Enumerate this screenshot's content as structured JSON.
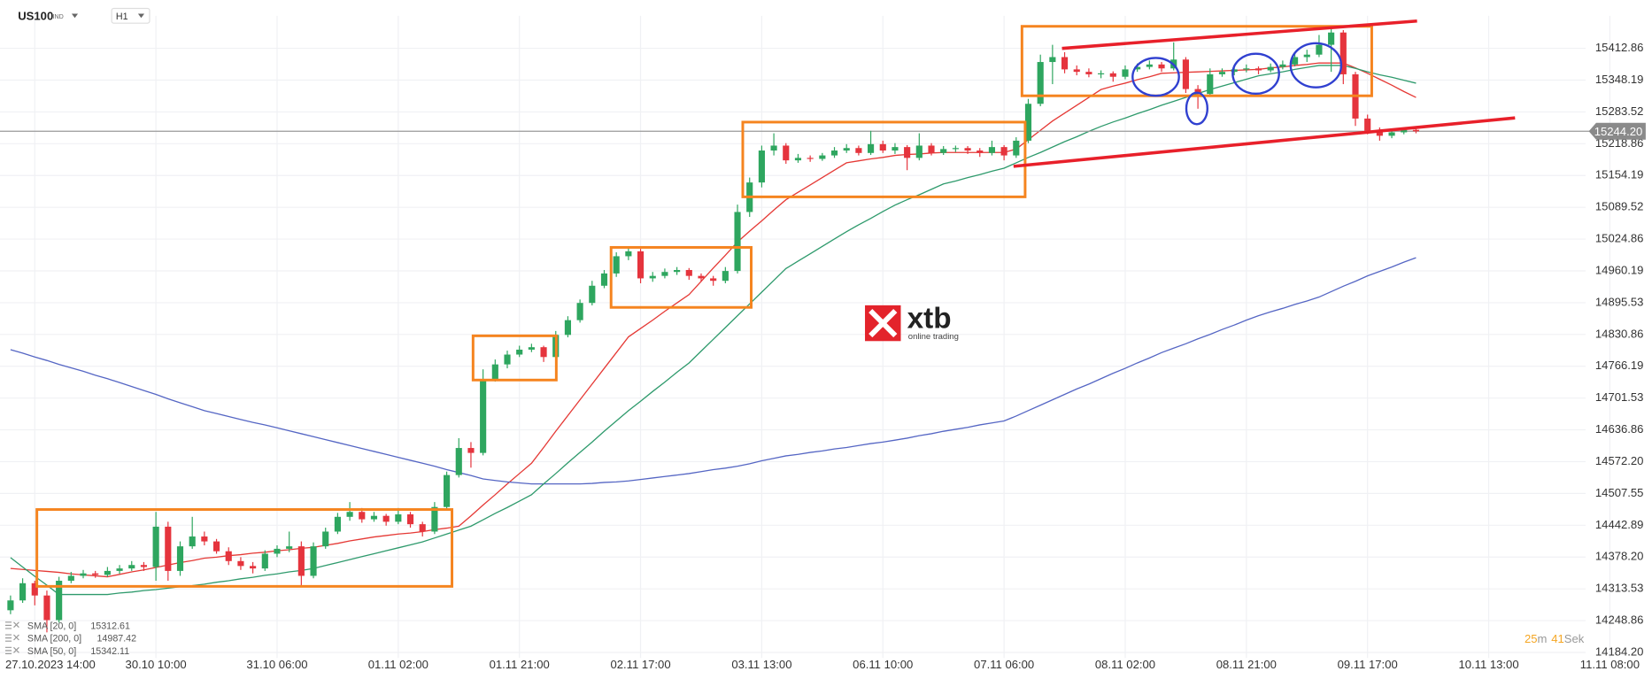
{
  "header": {
    "symbol": "US100",
    "market": "IND",
    "timeframe": "H1"
  },
  "logo": {
    "brand": "xtb",
    "tagline": "online trading"
  },
  "countdown": {
    "minutes": "25",
    "minutes_unit": "m",
    "seconds": "41",
    "seconds_unit": "Sek"
  },
  "chart_data": {
    "type": "candlestick",
    "categories": [
      null,
      null,
      "27.10.2023 14:00",
      null,
      null,
      null,
      null,
      null,
      null,
      null,
      null,
      null,
      "30.10 10:00",
      null,
      null,
      null,
      null,
      null,
      null,
      null,
      null,
      null,
      "31.10 06:00",
      null,
      null,
      null,
      null,
      null,
      null,
      null,
      null,
      null,
      "01.11 02:00",
      null,
      null,
      null,
      null,
      null,
      null,
      null,
      null,
      null,
      "01.11 21:00",
      null,
      null,
      null,
      null,
      null,
      null,
      null,
      null,
      null,
      "02.11 17:00",
      null,
      null,
      null,
      null,
      null,
      null,
      null,
      null,
      null,
      "03.11 13:00",
      null,
      null,
      null,
      null,
      null,
      null,
      null,
      null,
      null,
      "06.11 10:00",
      null,
      null,
      null,
      null,
      null,
      null,
      null,
      null,
      null,
      "07.11 06:00",
      null,
      null,
      null,
      null,
      null,
      null,
      null,
      null,
      null,
      "08.11 02:00",
      null,
      null,
      null,
      null,
      null,
      null,
      null,
      null,
      null,
      "08.11 21:00",
      null,
      null,
      null,
      null,
      null,
      null,
      null,
      null,
      null,
      "09.11 17:00",
      null,
      null,
      null,
      null,
      null,
      null,
      null,
      null,
      null,
      "10.11 13:00",
      null,
      null,
      null,
      null,
      null,
      null,
      null,
      null,
      null,
      "11.11 08:00"
    ],
    "open": [
      14270,
      14290,
      14325,
      14300,
      14250,
      14330,
      14340,
      14345,
      14342,
      14350,
      14355,
      14362,
      14358,
      14440,
      14350,
      14400,
      14420,
      14410,
      14390,
      14370,
      14360,
      14355,
      14385,
      14395,
      14400,
      14340,
      14400,
      14430,
      14460,
      14470,
      14455,
      14462,
      14450,
      14465,
      14445,
      14430,
      14480,
      14545,
      14600,
      14590,
      14740,
      14770,
      14790,
      14800,
      14805,
      14785,
      14830,
      14860,
      14895,
      14930,
      14955,
      14990,
      15000,
      14945,
      14950,
      14958,
      14962,
      14950,
      14945,
      14940,
      14960,
      15080,
      15140,
      15205,
      15215,
      15185,
      15190,
      15188,
      15195,
      15205,
      15210,
      15200,
      15218,
      15205,
      15212,
      15190,
      15215,
      15200,
      15208,
      15210,
      15205,
      15200,
      15212,
      15195,
      15225,
      15300,
      15385,
      15395,
      15370,
      15365,
      15360,
      15362,
      15355,
      15370,
      15375,
      15380,
      15372,
      15390,
      15330,
      15320,
      15360,
      15365,
      15370,
      15372,
      15368,
      15375,
      15380,
      15395,
      15400,
      15420,
      15445,
      15360,
      15270,
      15245,
      15235,
      15242,
      15247,
      null,
      null,
      null,
      null,
      null,
      null,
      null,
      null,
      null,
      null,
      null,
      null,
      null,
      null,
      null,
      null
    ],
    "high": [
      14300,
      14335,
      14330,
      14310,
      14338,
      14348,
      14352,
      14350,
      14358,
      14362,
      14370,
      14368,
      14470,
      14450,
      14410,
      14460,
      14430,
      14415,
      14398,
      14378,
      14368,
      14392,
      14402,
      14430,
      14410,
      14408,
      14438,
      14468,
      14490,
      14478,
      14470,
      14466,
      14478,
      14470,
      14450,
      14490,
      14552,
      14620,
      14612,
      14760,
      14780,
      14798,
      14808,
      14812,
      14808,
      14838,
      14868,
      14902,
      14940,
      14962,
      14998,
      15010,
      15005,
      14958,
      14965,
      14968,
      14966,
      14955,
      14950,
      14968,
      15095,
      15150,
      15215,
      15240,
      15220,
      15198,
      15195,
      15200,
      15212,
      15218,
      15215,
      15245,
      15225,
      15220,
      15216,
      15240,
      15220,
      15214,
      15215,
      15214,
      15210,
      15225,
      15216,
      15232,
      15310,
      15400,
      15420,
      15405,
      15378,
      15372,
      15368,
      15366,
      15378,
      15382,
      15388,
      15385,
      15425,
      15395,
      15338,
      15372,
      15372,
      15378,
      15380,
      15376,
      15382,
      15388,
      15402,
      15410,
      15440,
      15455,
      15450,
      15365,
      15278,
      15252,
      15248,
      15252,
      15250,
      null,
      null,
      null,
      null,
      null,
      null,
      null,
      null,
      null,
      null,
      null,
      null,
      null,
      null,
      null,
      null
    ],
    "low": [
      14262,
      14285,
      14280,
      14225,
      14245,
      14325,
      14335,
      14336,
      14338,
      14344,
      14350,
      14350,
      14330,
      14330,
      14340,
      14395,
      14402,
      14385,
      14362,
      14352,
      14345,
      14350,
      14378,
      14388,
      14320,
      14335,
      14395,
      14425,
      14452,
      14448,
      14450,
      14442,
      14445,
      14438,
      14420,
      14425,
      14475,
      14540,
      14560,
      14585,
      14735,
      14762,
      14785,
      14795,
      14775,
      14780,
      14825,
      14855,
      14890,
      14925,
      14948,
      14982,
      14935,
      14938,
      14945,
      14952,
      14942,
      14938,
      14930,
      14935,
      14955,
      15070,
      15130,
      15195,
      15178,
      15180,
      15182,
      15184,
      15190,
      15200,
      15195,
      15196,
      15200,
      15198,
      15165,
      15185,
      15195,
      15196,
      15202,
      15198,
      15192,
      15195,
      15185,
      15190,
      15220,
      15295,
      15340,
      15362,
      15358,
      15354,
      15352,
      15345,
      15350,
      15365,
      15370,
      15365,
      15368,
      15322,
      15290,
      15315,
      15355,
      15358,
      15364,
      15360,
      15364,
      15370,
      15376,
      15385,
      15395,
      15365,
      15340,
      15255,
      15238,
      15225,
      15230,
      15238,
      15240,
      null,
      null,
      null,
      null,
      null,
      null,
      null,
      null,
      null,
      null,
      null,
      null,
      null,
      null,
      null,
      null
    ],
    "close": [
      14290,
      14325,
      14300,
      14250,
      14330,
      14340,
      14345,
      14342,
      14350,
      14355,
      14362,
      14358,
      14440,
      14350,
      14400,
      14420,
      14410,
      14390,
      14370,
      14360,
      14355,
      14385,
      14395,
      14400,
      14340,
      14400,
      14430,
      14460,
      14470,
      14455,
      14462,
      14450,
      14465,
      14445,
      14430,
      14480,
      14545,
      14600,
      14590,
      14740,
      14770,
      14790,
      14800,
      14805,
      14785,
      14830,
      14860,
      14895,
      14930,
      14955,
      14990,
      15000,
      14945,
      14950,
      14958,
      14962,
      14950,
      14945,
      14940,
      14960,
      15080,
      15140,
      15205,
      15215,
      15185,
      15190,
      15188,
      15195,
      15205,
      15210,
      15200,
      15218,
      15205,
      15212,
      15190,
      15215,
      15200,
      15208,
      15210,
      15205,
      15200,
      15212,
      15195,
      15225,
      15300,
      15385,
      15395,
      15370,
      15365,
      15360,
      15362,
      15355,
      15370,
      15375,
      15380,
      15372,
      15390,
      15330,
      15320,
      15360,
      15365,
      15370,
      15372,
      15368,
      15375,
      15380,
      15395,
      15400,
      15420,
      15445,
      15360,
      15270,
      15245,
      15235,
      15242,
      15247,
      15244,
      null,
      null,
      null,
      null,
      null,
      null,
      null,
      null,
      null,
      null,
      null,
      null,
      null,
      null,
      null,
      null
    ],
    "up_color": "#2ea65f",
    "down_color": "#e5343d",
    "series": [
      {
        "name": "SMA [20, 0]",
        "color": "#e53935",
        "last_value": 15312.61,
        "values": [
          14355,
          14353,
          14351,
          14349,
          14347,
          14344,
          14342,
          14340,
          14338,
          14343,
          14348,
          14352,
          14357,
          14362,
          14367,
          14371,
          14376,
          14378,
          14381,
          14383,
          14386,
          14388,
          14391,
          14393,
          14396,
          14398,
          14402,
          14406,
          14411,
          14415,
          14419,
          14422,
          14425,
          14427,
          14430,
          14434,
          14437,
          14441,
          14462,
          14484,
          14505,
          14527,
          14548,
          14569,
          14601,
          14634,
          14666,
          14698,
          14730,
          14762,
          14794,
          14826,
          14843,
          14860,
          14878,
          14895,
          14912,
          14939,
          14966,
          14992,
          15019,
          15041,
          15062,
          15084,
          15105,
          15120,
          15135,
          15150,
          15165,
          15180,
          15184,
          15188,
          15191,
          15195,
          15197,
          15198,
          15200,
          15201,
          15201,
          15201,
          15201,
          15201,
          15201,
          15208,
          15227,
          15246,
          15265,
          15281,
          15297,
          15313,
          15329,
          15336,
          15342,
          15349,
          15355,
          15362,
          15363,
          15364,
          15365,
          15366,
          15367,
          15368,
          15369,
          15370,
          15373,
          15375,
          15378,
          15380,
          15383,
          15383,
          15383,
          15373,
          15362,
          15350,
          15338,
          15325,
          15313,
          null,
          null,
          null,
          null,
          null,
          null,
          null,
          null,
          null,
          null,
          null,
          null,
          null,
          null,
          null,
          null
        ]
      },
      {
        "name": "SMA [200, 0]",
        "color": "#5566c4",
        "last_value": 14987.42,
        "values": [
          14800,
          14793,
          14785,
          14778,
          14770,
          14763,
          14756,
          14748,
          14741,
          14733,
          14725,
          14717,
          14709,
          14700,
          14692,
          14684,
          14676,
          14670,
          14664,
          14658,
          14652,
          14647,
          14641,
          14635,
          14629,
          14623,
          14617,
          14611,
          14605,
          14599,
          14593,
          14587,
          14581,
          14575,
          14569,
          14563,
          14556,
          14550,
          14544,
          14537,
          14534,
          14531,
          14529,
          14527,
          14527,
          14527,
          14527,
          14527,
          14528,
          14530,
          14531,
          14533,
          14536,
          14539,
          14542,
          14545,
          14548,
          14552,
          14556,
          14559,
          14563,
          14568,
          14574,
          14579,
          14584,
          14587,
          14591,
          14594,
          14598,
          14601,
          14605,
          14609,
          14612,
          14616,
          14620,
          14625,
          14629,
          14634,
          14638,
          14642,
          14647,
          14651,
          14655,
          14665,
          14676,
          14687,
          14698,
          14709,
          14720,
          14730,
          14741,
          14752,
          14762,
          14773,
          14783,
          14794,
          14803,
          14812,
          14822,
          14831,
          14841,
          14850,
          14860,
          14869,
          14877,
          14884,
          14892,
          14899,
          14907,
          14918,
          14929,
          14939,
          14950,
          14959,
          14968,
          14978,
          14987,
          null,
          null,
          null,
          null,
          null,
          null,
          null,
          null,
          null,
          null,
          null,
          null,
          null,
          null,
          null,
          null
        ]
      },
      {
        "name": "SMA [50, 0]",
        "color": "#2e9a6c",
        "last_value": 15342.11,
        "values": [
          14377,
          14358,
          14339,
          14321,
          14302,
          14302,
          14302,
          14302,
          14302,
          14305,
          14307,
          14310,
          14312,
          14315,
          14318,
          14320,
          14323,
          14327,
          14330,
          14334,
          14337,
          14341,
          14344,
          14348,
          14351,
          14355,
          14361,
          14367,
          14373,
          14379,
          14385,
          14391,
          14397,
          14403,
          14409,
          14417,
          14425,
          14433,
          14441,
          14454,
          14467,
          14479,
          14492,
          14505,
          14527,
          14548,
          14570,
          14591,
          14612,
          14634,
          14655,
          14676,
          14695,
          14715,
          14734,
          14754,
          14773,
          14797,
          14821,
          14845,
          14869,
          14893,
          14917,
          14941,
          14965,
          14980,
          14995,
          15010,
          15025,
          15040,
          15054,
          15067,
          15081,
          15094,
          15105,
          15115,
          15126,
          15137,
          15143,
          15150,
          15156,
          15163,
          15169,
          15180,
          15191,
          15201,
          15212,
          15223,
          15233,
          15244,
          15254,
          15263,
          15271,
          15280,
          15288,
          15297,
          15305,
          15313,
          15321,
          15329,
          15336,
          15343,
          15350,
          15357,
          15361,
          15365,
          15370,
          15374,
          15378,
          15378,
          15378,
          15372,
          15365,
          15359,
          15354,
          15348,
          15342,
          null,
          null,
          null,
          null,
          null,
          null,
          null,
          null,
          null,
          null,
          null,
          null,
          null,
          null,
          null,
          null
        ]
      }
    ],
    "ylim": [
      14173,
      15479
    ],
    "yticks": [
      15412.86,
      15348.19,
      15283.52,
      15218.86,
      15154.19,
      15089.52,
      15024.86,
      14960.19,
      14895.53,
      14830.86,
      14766.19,
      14701.53,
      14636.86,
      {
        "value": 14572.2,
        "label": "14572.20"
      },
      14507.55,
      14442.89,
      {
        "value": 14378.2,
        "label": "14378.20"
      },
      14313.53,
      14248.86,
      {
        "value": 14184.2,
        "label": "14184.20"
      }
    ],
    "grid": true,
    "current_price": {
      "value": 15244.2,
      "label": "15244.20"
    }
  }
}
